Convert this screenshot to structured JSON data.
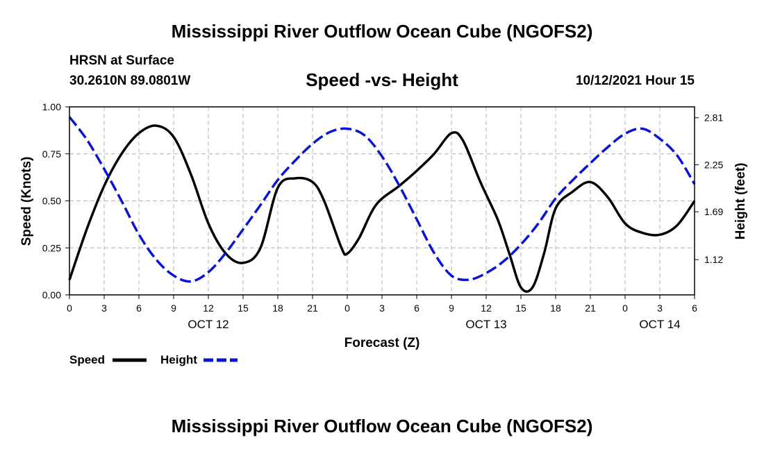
{
  "page": {
    "title_top": "Mississippi River Outflow Ocean Cube (NGOFS2)",
    "title_bottom": "Mississippi River Outflow Ocean Cube (NGOFS2)",
    "station": "HRSN at Surface",
    "location": "30.2610N  89.0801W",
    "subtitle": "Speed -vs- Height",
    "date": "10/12/2021 Hour 15"
  },
  "legend": {
    "speed": "Speed",
    "height": "Height"
  },
  "colors": {
    "speed": "#000000",
    "height": "#0a14d2",
    "grid": "#b4b4b4"
  },
  "chart_data": {
    "type": "line",
    "xlabel": "Forecast (Z)",
    "ylabel_left": "Speed (Knots)",
    "ylabel_right": "Height (feet)",
    "x_range_hours": [
      0,
      54
    ],
    "ylim_left": [
      0,
      1
    ],
    "ylim_right": [
      0.7,
      2.94
    ],
    "x_ticks": [
      {
        "h": 0,
        "label": "0"
      },
      {
        "h": 3,
        "label": "3"
      },
      {
        "h": 6,
        "label": "6"
      },
      {
        "h": 9,
        "label": "9"
      },
      {
        "h": 12,
        "label": "12"
      },
      {
        "h": 15,
        "label": "15"
      },
      {
        "h": 18,
        "label": "18"
      },
      {
        "h": 21,
        "label": "21"
      },
      {
        "h": 24,
        "label": "0"
      },
      {
        "h": 27,
        "label": "3"
      },
      {
        "h": 30,
        "label": "6"
      },
      {
        "h": 33,
        "label": "9"
      },
      {
        "h": 36,
        "label": "12"
      },
      {
        "h": 39,
        "label": "15"
      },
      {
        "h": 42,
        "label": "18"
      },
      {
        "h": 45,
        "label": "21"
      },
      {
        "h": 48,
        "label": "0"
      },
      {
        "h": 51,
        "label": "3"
      },
      {
        "h": 54,
        "label": "6"
      }
    ],
    "date_labels": [
      {
        "h": 12,
        "label": "OCT 12"
      },
      {
        "h": 36,
        "label": "OCT 13"
      },
      {
        "h": 51,
        "label": "OCT 14"
      }
    ],
    "y_ticks_left": [
      {
        "v": 0.0,
        "label": "0.00"
      },
      {
        "v": 0.25,
        "label": "0.25"
      },
      {
        "v": 0.5,
        "label": "0.50"
      },
      {
        "v": 0.75,
        "label": "0.75"
      },
      {
        "v": 1.0,
        "label": "1.00"
      }
    ],
    "y_ticks_right": [
      {
        "v": 1.12,
        "label": "1.12"
      },
      {
        "v": 1.69,
        "label": "1.69"
      },
      {
        "v": 2.25,
        "label": "2.25"
      },
      {
        "v": 2.81,
        "label": "2.81"
      }
    ],
    "series": [
      {
        "name": "Speed",
        "axis": "left",
        "style": "solid",
        "x": [
          0,
          1.5,
          3,
          4.5,
          6,
          7.5,
          9,
          10.5,
          12,
          13.5,
          15,
          16.5,
          18,
          19.5,
          21,
          22,
          23.5,
          24,
          25,
          26.5,
          28.5,
          30,
          31.5,
          33,
          34,
          35.5,
          37,
          38,
          39,
          40,
          41,
          42,
          43.5,
          45,
          46.5,
          48,
          49.5,
          51,
          52.5,
          54
        ],
        "values": [
          0.08,
          0.35,
          0.58,
          0.75,
          0.86,
          0.9,
          0.84,
          0.64,
          0.38,
          0.22,
          0.17,
          0.25,
          0.57,
          0.62,
          0.6,
          0.5,
          0.25,
          0.22,
          0.3,
          0.48,
          0.58,
          0.66,
          0.75,
          0.86,
          0.82,
          0.6,
          0.4,
          0.22,
          0.04,
          0.04,
          0.22,
          0.46,
          0.55,
          0.6,
          0.52,
          0.38,
          0.33,
          0.32,
          0.37,
          0.5
        ]
      },
      {
        "name": "Height",
        "axis": "right",
        "style": "dashed",
        "x": [
          0,
          1.5,
          3,
          4.5,
          6,
          7.5,
          9,
          10.5,
          12,
          13.5,
          15,
          16.5,
          18,
          19.5,
          21,
          22.5,
          24,
          25.5,
          27,
          28.5,
          30,
          31.5,
          33,
          34.5,
          36,
          37.5,
          39,
          40.5,
          42,
          43.5,
          45,
          46.5,
          48,
          49.5,
          51,
          52.5,
          54
        ],
        "values": [
          2.82,
          2.55,
          2.2,
          1.82,
          1.42,
          1.12,
          0.93,
          0.86,
          0.97,
          1.2,
          1.48,
          1.77,
          2.07,
          2.3,
          2.5,
          2.64,
          2.68,
          2.6,
          2.35,
          2.0,
          1.6,
          1.2,
          0.93,
          0.88,
          0.96,
          1.1,
          1.3,
          1.55,
          1.85,
          2.07,
          2.27,
          2.46,
          2.62,
          2.68,
          2.56,
          2.36,
          2.02
        ]
      }
    ]
  }
}
